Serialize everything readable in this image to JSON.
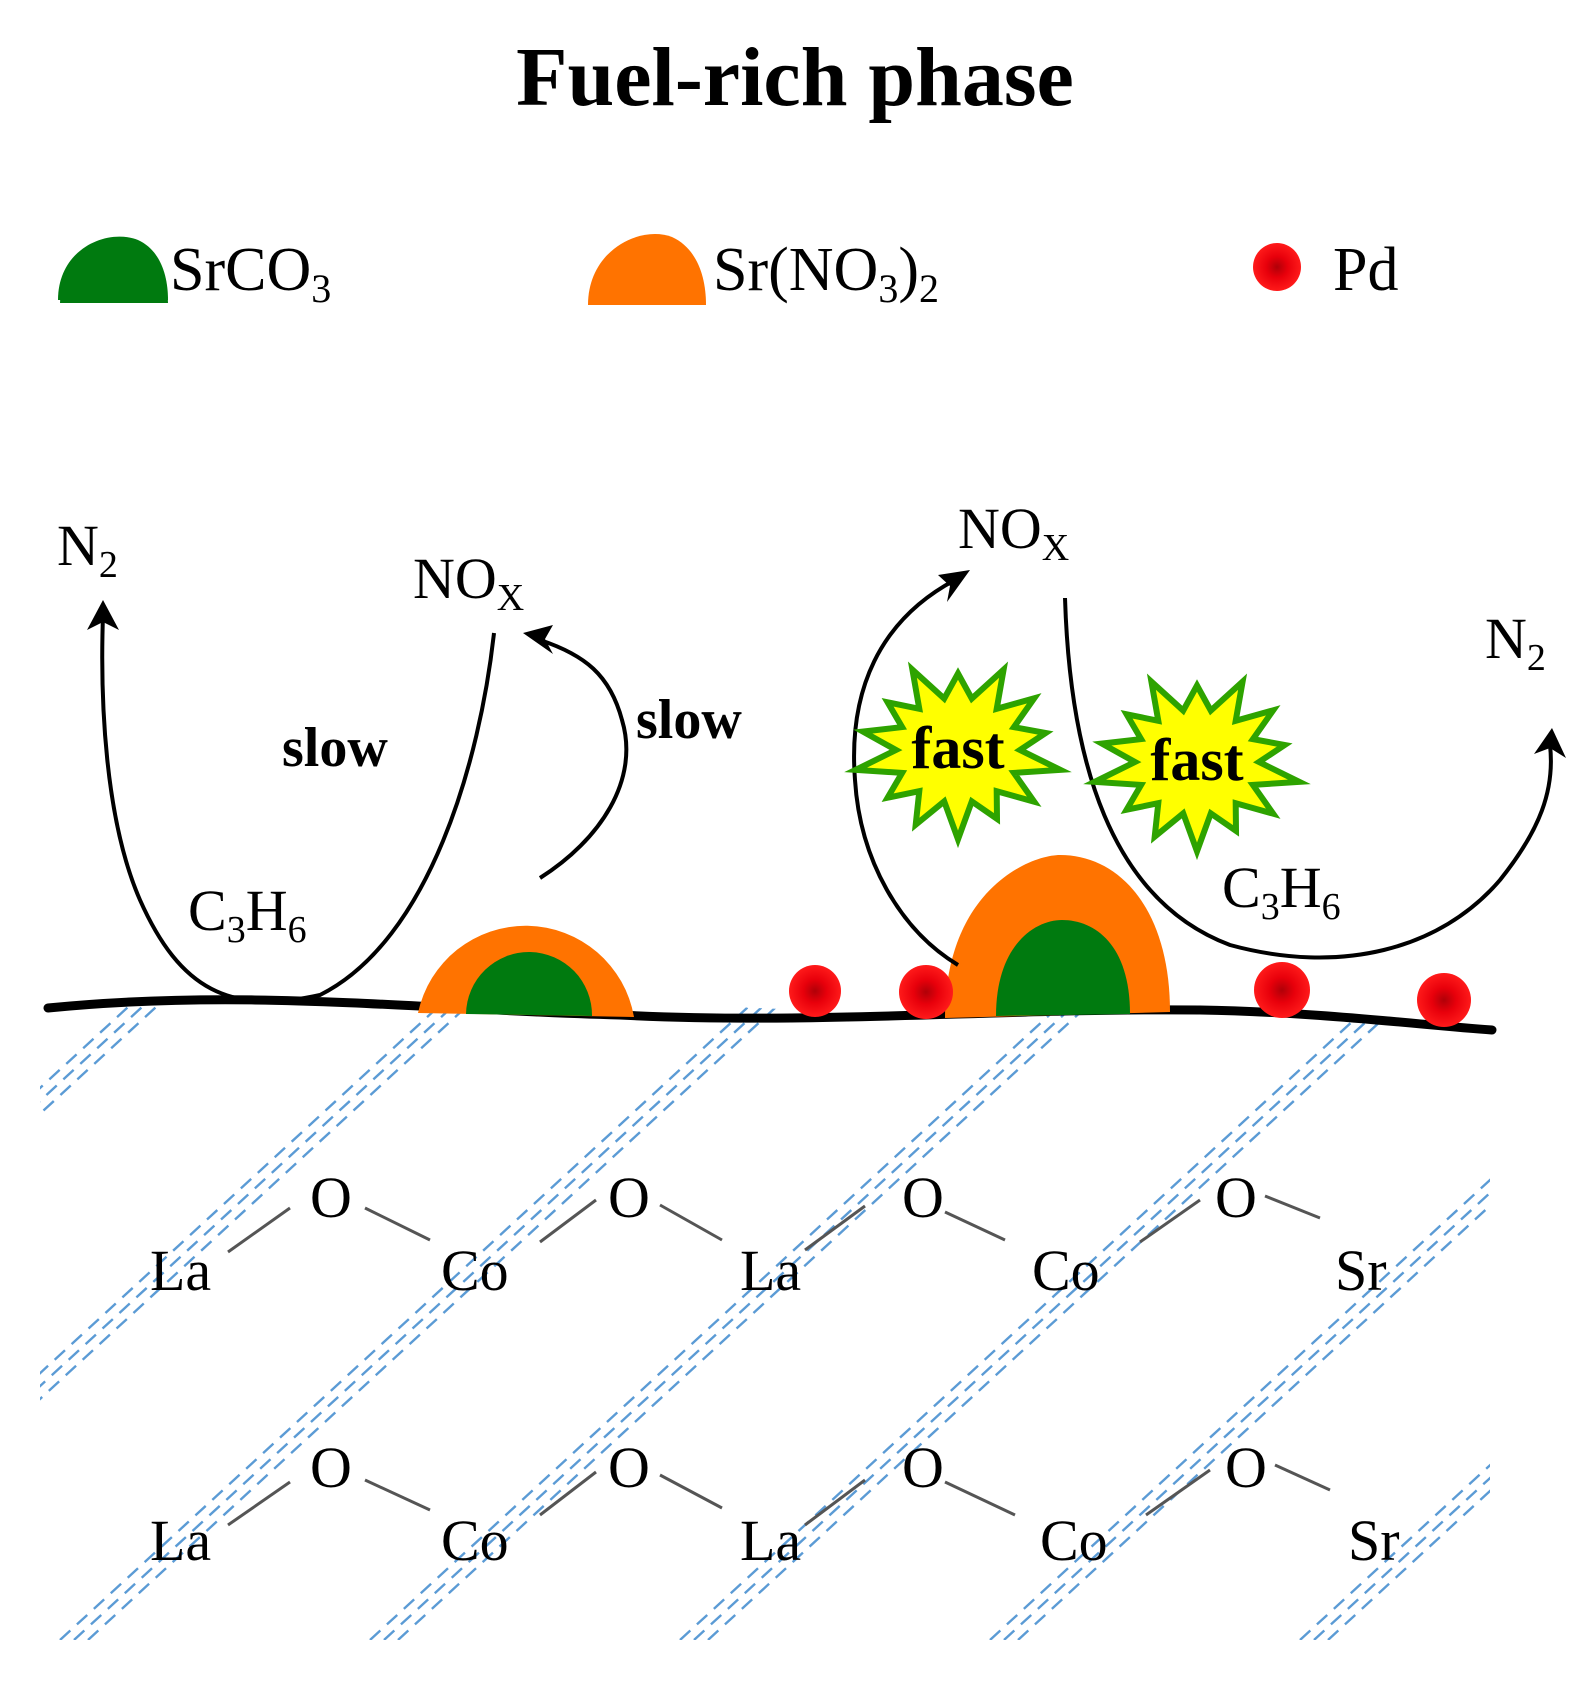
{
  "title": "Fuel-rich phase",
  "legend": {
    "srco3": {
      "base": "SrCO",
      "sub": "3",
      "color": "#007a0f"
    },
    "srno3": {
      "p1": "Sr(NO",
      "sub1": "3",
      "p2": ")",
      "sub2": "2",
      "color": "#ff7300"
    },
    "pd": {
      "text": "Pd",
      "color": "#e8000b"
    }
  },
  "species": {
    "n2": {
      "base": "N",
      "sub": "2"
    },
    "nox": {
      "base": "NO",
      "sub": "X"
    },
    "c3h6": {
      "c": "C",
      "c_sub": "3",
      "h": "H",
      "h_sub": "6"
    }
  },
  "rates": {
    "slow": "slow",
    "fast": "fast"
  },
  "lattice": {
    "row1": [
      "La",
      "O",
      "Co",
      "O",
      "La",
      "O",
      "Co",
      "O",
      "Sr"
    ],
    "row2": [
      "La",
      "O",
      "Co",
      "O",
      "La",
      "O",
      "Co",
      "O",
      "Sr"
    ]
  },
  "colors": {
    "srco3": "#007a0f",
    "srno3": "#ff7300",
    "pd": "#e8000b",
    "burst_fill": "#ffff00",
    "burst_stroke": "#2ea300",
    "hatch": "#5b9bd5"
  }
}
